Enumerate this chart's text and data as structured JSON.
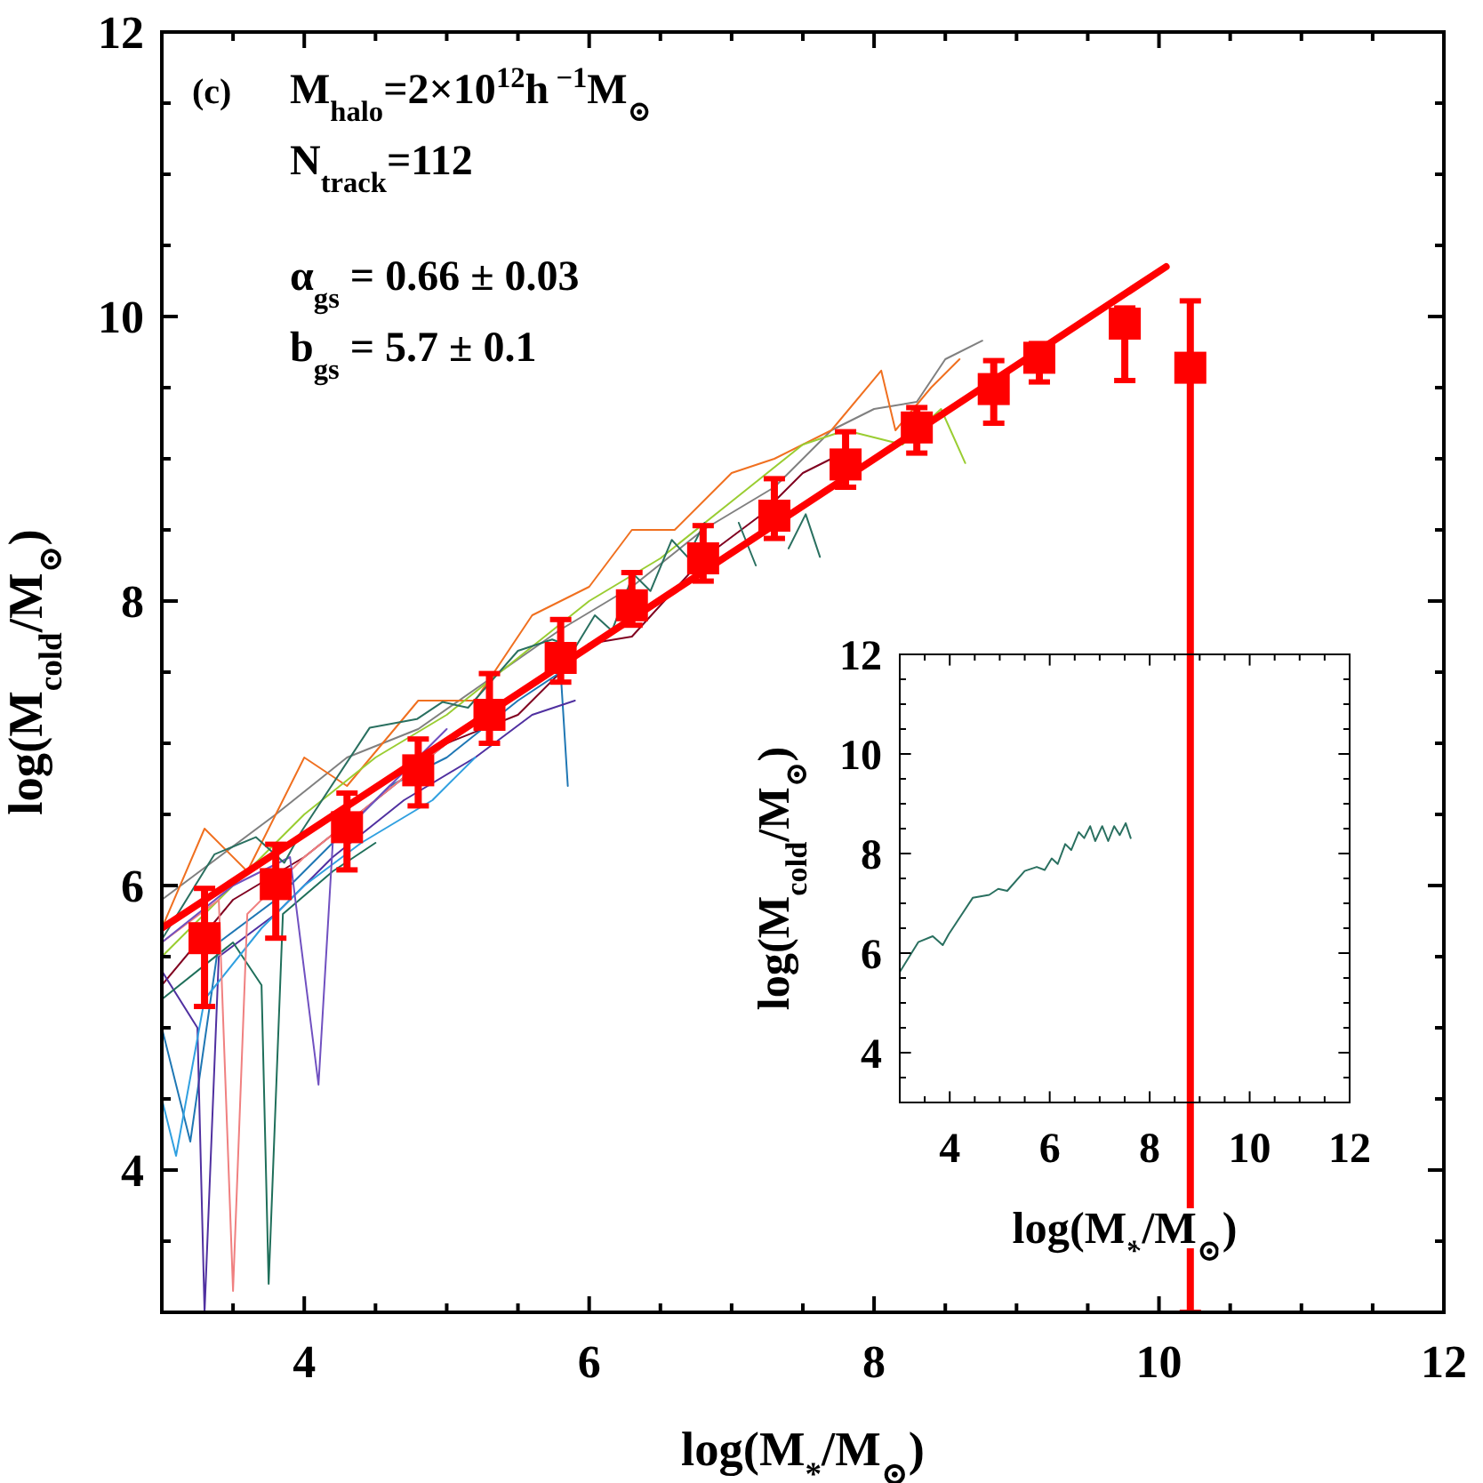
{
  "chart_data": [
    {
      "type": "line",
      "xlabel": "log(M$_{*}$/M$_{⊙}$)",
      "ylabel": "log(M$_{cold}$/M$_{⊙}$)",
      "annotations": [
        "(c)",
        "M$_{halo}$=2×10$^{12}$h$^{ −1}$M$_{⊙}$",
        "N$_{track}$=112",
        "α$_{gs}$ = 0.66 ± 0.03",
        "b$_{gs}$ = 5.7 ± 0.1"
      ],
      "xlim": [
        3,
        12
      ],
      "ylim": [
        3,
        12
      ],
      "xticks": [
        {
          "value": 3.5,
          "label": null
        },
        4,
        {
          "value": 4.5,
          "label": null
        },
        {
          "value": 5,
          "label": null
        },
        {
          "value": 5.5,
          "label": null
        },
        6,
        {
          "value": 6.5,
          "label": null
        },
        {
          "value": 7,
          "label": null
        },
        {
          "value": 7.5,
          "label": null
        },
        8,
        {
          "value": 8.5,
          "label": null
        },
        {
          "value": 9,
          "label": null
        },
        {
          "value": 9.5,
          "label": null
        },
        10,
        {
          "value": 10.5,
          "label": null
        },
        {
          "value": 11,
          "label": null
        },
        {
          "value": 11.5,
          "label": null
        },
        12
      ],
      "yticks": [
        {
          "value": 3.5,
          "label": null
        },
        4,
        {
          "value": 4.5,
          "label": null
        },
        {
          "value": 5,
          "label": null
        },
        {
          "value": 5.5,
          "label": null
        },
        6,
        {
          "value": 6.5,
          "label": null
        },
        {
          "value": 7,
          "label": null
        },
        {
          "value": 7.5,
          "label": null
        },
        8,
        {
          "value": 8.5,
          "label": null
        },
        {
          "value": 9,
          "label": null
        },
        {
          "value": 9.5,
          "label": null
        },
        10,
        {
          "value": 10.5,
          "label": null
        },
        {
          "value": 11,
          "label": null
        },
        {
          "value": 11.5,
          "label": null
        },
        12
      ],
      "grid": false,
      "line_style": "solid",
      "series": [
        {
          "type": "line",
          "color": "#808080",
          "x": [
            3.0,
            3.4,
            3.8,
            4.3,
            4.8,
            5.3,
            5.8,
            6.3,
            6.8,
            7.3,
            7.7,
            8.0,
            8.3,
            8.5,
            8.76
          ],
          "values": [
            5.9,
            6.2,
            6.5,
            6.9,
            7.1,
            7.45,
            7.8,
            8.1,
            8.5,
            8.8,
            9.2,
            9.35,
            9.4,
            9.7,
            9.83
          ]
        },
        {
          "type": "line",
          "color": "#f07020",
          "x": [
            3.0,
            3.3,
            3.6,
            4.0,
            4.3,
            4.8,
            5.2,
            5.6,
            6.0,
            6.3,
            6.6,
            7.0,
            7.3,
            7.7,
            8.05,
            8.15,
            8.4,
            8.6
          ],
          "values": [
            5.7,
            6.4,
            6.1,
            6.9,
            6.7,
            7.3,
            7.3,
            7.9,
            8.1,
            8.5,
            8.5,
            8.9,
            9.0,
            9.2,
            9.62,
            9.2,
            9.5,
            9.7
          ]
        },
        {
          "type": "line",
          "color": "#9acd32",
          "x": [
            3.0,
            3.5,
            4.0,
            4.5,
            5.0,
            5.5,
            6.0,
            6.5,
            7.0,
            7.5,
            7.8,
            8.2,
            8.47,
            8.64
          ],
          "values": [
            5.5,
            6.0,
            6.5,
            6.9,
            7.2,
            7.6,
            8.0,
            8.3,
            8.7,
            9.1,
            9.2,
            9.1,
            9.35,
            8.97
          ]
        },
        {
          "type": "line",
          "color": "#800020",
          "x": [
            3.0,
            3.5,
            4.0,
            4.5,
            5.0,
            5.5,
            6.0,
            6.3,
            6.8,
            7.2,
            7.5,
            7.7
          ],
          "values": [
            5.3,
            5.9,
            6.2,
            6.6,
            7.0,
            7.2,
            7.7,
            7.75,
            8.3,
            8.6,
            8.9,
            9.0
          ]
        },
        {
          "type": "line",
          "color": "#1f77b4",
          "x": [
            3.0,
            3.2,
            3.4,
            3.8,
            4.2,
            4.6,
            5.0,
            5.5,
            5.8,
            5.85
          ],
          "values": [
            5.0,
            4.2,
            5.6,
            5.9,
            6.3,
            6.7,
            6.9,
            7.3,
            7.5,
            6.7
          ]
        },
        {
          "type": "line",
          "color": "#5030a0",
          "x": [
            3.0,
            3.25,
            3.3,
            3.4,
            3.8,
            4.2,
            4.7,
            5.2,
            5.6,
            5.9
          ],
          "values": [
            5.4,
            5.0,
            3.0,
            5.5,
            5.8,
            6.2,
            6.6,
            6.9,
            7.2,
            7.3
          ]
        },
        {
          "type": "line",
          "color": "#1f6f5a",
          "x": [
            3.0,
            3.5,
            3.7,
            3.75,
            3.85,
            4.2,
            4.5
          ],
          "values": [
            5.2,
            5.6,
            5.3,
            3.2,
            5.8,
            6.1,
            6.3
          ]
        },
        {
          "type": "line",
          "color": "#30a0e0",
          "x": [
            3.0,
            3.1,
            3.3,
            3.7,
            4.0,
            4.4,
            4.9,
            5.2
          ],
          "values": [
            4.5,
            4.1,
            5.2,
            5.7,
            6.0,
            6.3,
            6.6,
            6.9
          ]
        },
        {
          "type": "line",
          "color": "#f08080",
          "x": [
            3.0,
            3.4,
            3.5,
            3.6,
            4.0,
            4.5,
            5.0
          ],
          "values": [
            5.6,
            5.9,
            3.15,
            5.8,
            6.2,
            6.6,
            7.0
          ]
        },
        {
          "type": "line",
          "color": "#7050c0",
          "x": [
            3.0,
            3.5,
            3.9,
            4.1,
            4.2,
            4.6,
            5.0
          ],
          "values": [
            5.6,
            6.0,
            6.2,
            4.6,
            6.3,
            6.7,
            7.1
          ]
        },
        {
          "type": "line",
          "color": "#2a7060",
          "x": [
            3.0,
            3.37,
            3.66,
            3.86,
            3.98,
            4.46,
            4.79,
            4.97,
            5.15,
            5.5,
            5.74,
            5.9,
            6.04,
            6.16,
            6.31,
            6.43,
            6.58,
            6.69,
            6.81,
            6.91,
            7.05,
            7.17,
            7.29,
            7.4,
            7.52,
            7.62
          ],
          "values": [
            5.62,
            6.22,
            6.34,
            6.16,
            6.38,
            7.11,
            7.17,
            7.29,
            7.25,
            7.65,
            7.73,
            7.67,
            7.9,
            7.79,
            8.19,
            8.07,
            8.43,
            8.31,
            8.55,
            null,
            8.55,
            8.25,
            null,
            8.37,
            8.61,
            8.31
          ]
        },
        {
          "type": "line",
          "color": "#ff0000",
          "x": [
            3,
            10.05
          ],
          "values": [
            5.7,
            10.35
          ]
        },
        {
          "type": "scatter",
          "marker": "square",
          "color": "#ff0000",
          "x": [
            3.3,
            3.8,
            4.3,
            4.8,
            5.3,
            5.8,
            6.3,
            6.8,
            7.3,
            7.8,
            8.3,
            8.84,
            9.16,
            9.76,
            10.22
          ],
          "values": [
            5.63,
            6.01,
            6.41,
            6.81,
            7.2,
            7.6,
            7.97,
            8.3,
            8.6,
            8.96,
            9.22,
            9.49,
            9.71,
            9.95,
            9.64
          ],
          "errors": [
            [
              5.15,
              5.98
            ],
            [
              5.63,
              6.29
            ],
            [
              6.11,
              6.65
            ],
            [
              6.56,
              7.03
            ],
            [
              7.0,
              7.49
            ],
            [
              7.43,
              7.87
            ],
            [
              7.83,
              8.2
            ],
            [
              8.14,
              8.53
            ],
            [
              8.44,
              8.86
            ],
            [
              8.8,
              9.19
            ],
            [
              9.04,
              9.36
            ],
            [
              9.25,
              9.69
            ],
            [
              9.54,
              9.81
            ],
            [
              9.55,
              10.06
            ],
            [
              3,
              10.11
            ]
          ]
        }
      ]
    },
    {
      "type": "line",
      "xlabel": "log(M$_{*}$/M$_{⊙}$)",
      "ylabel": "log(M$_{cold}$/M$_{⊙}$)",
      "xlim": [
        3,
        12
      ],
      "ylim": [
        3,
        12
      ],
      "xticks": [
        {
          "value": 3.5,
          "label": null
        },
        4,
        {
          "value": 4.5,
          "label": null
        },
        {
          "value": 5,
          "label": null
        },
        {
          "value": 5.5,
          "label": null
        },
        6,
        {
          "value": 6.5,
          "label": null
        },
        {
          "value": 7,
          "label": null
        },
        {
          "value": 7.5,
          "label": null
        },
        8,
        {
          "value": 8.5,
          "label": null
        },
        {
          "value": 9,
          "label": null
        },
        {
          "value": 9.5,
          "label": null
        },
        10,
        {
          "value": 10.5,
          "label": null
        },
        {
          "value": 11,
          "label": null
        },
        {
          "value": 11.5,
          "label": null
        },
        12
      ],
      "yticks": [
        {
          "value": 3.5,
          "label": null
        },
        4,
        {
          "value": 4.5,
          "label": null
        },
        {
          "value": 5,
          "label": null
        },
        {
          "value": 5.5,
          "label": null
        },
        6,
        {
          "value": 6.5,
          "label": null
        },
        {
          "value": 7,
          "label": null
        },
        {
          "value": 7.5,
          "label": null
        },
        8,
        {
          "value": 8.5,
          "label": null
        },
        {
          "value": 9,
          "label": null
        },
        {
          "value": 9.5,
          "label": null
        },
        10,
        {
          "value": 10.5,
          "label": null
        },
        {
          "value": 11,
          "label": null
        },
        {
          "value": 11.5,
          "label": null
        },
        12
      ],
      "grid": false,
      "line_style": "solid",
      "series": [
        {
          "type": "line",
          "color": "#2a7060",
          "x": [
            3.0,
            3.37,
            3.66,
            3.86,
            3.98,
            4.46,
            4.79,
            4.97,
            5.15,
            5.5,
            5.74,
            5.9,
            6.04,
            6.16,
            6.31,
            6.43,
            6.58,
            6.69,
            6.81,
            6.91,
            7.05,
            7.17,
            7.29,
            7.4,
            7.52,
            7.62
          ],
          "values": [
            5.62,
            6.22,
            6.34,
            6.16,
            6.38,
            7.11,
            7.17,
            7.29,
            7.25,
            7.65,
            7.73,
            7.67,
            7.9,
            7.79,
            8.19,
            8.07,
            8.43,
            8.31,
            8.55,
            8.25,
            8.55,
            8.25,
            8.55,
            8.37,
            8.61,
            8.31
          ]
        }
      ]
    }
  ]
}
